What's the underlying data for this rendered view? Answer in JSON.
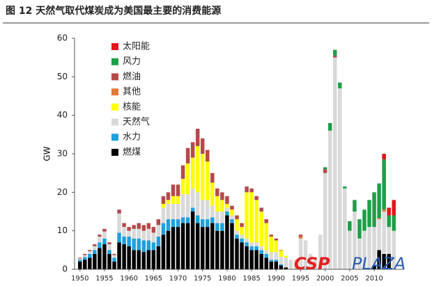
{
  "chart_data": {
    "type": "stacked_bar",
    "title": "图 12 天然气取代煤炭成为美国最主要的消费能源",
    "y_label": "GW",
    "watermark": [
      "CSP",
      "PLAZA"
    ],
    "x": [
      1950,
      1951,
      1952,
      1953,
      1954,
      1955,
      1956,
      1957,
      1958,
      1959,
      1960,
      1961,
      1962,
      1963,
      1964,
      1965,
      1966,
      1967,
      1968,
      1969,
      1970,
      1971,
      1972,
      1973,
      1974,
      1975,
      1976,
      1977,
      1978,
      1979,
      1980,
      1981,
      1982,
      1983,
      1984,
      1985,
      1986,
      1987,
      1988,
      1989,
      1990,
      1991,
      1992,
      1993,
      1994,
      1995,
      1996,
      1997,
      1998,
      1999,
      2000,
      2001,
      2002,
      2003,
      2004,
      2005,
      2006,
      2007,
      2008,
      2009,
      2010,
      2011,
      2012,
      2013,
      2014
    ],
    "xlim": [
      1948.9,
      2016.1
    ],
    "xticks": [
      1950,
      1955,
      1960,
      1965,
      1970,
      1975,
      1980,
      1985,
      1990,
      1995,
      2000,
      2005,
      2010
    ],
    "ylim": [
      0,
      60
    ],
    "yticks": [
      0,
      10,
      20,
      30,
      40,
      50,
      60
    ],
    "legend": "top-left",
    "series": [
      {
        "name": "燃煤",
        "color": "#000000",
        "values": [
          2,
          2.5,
          3,
          4,
          5.5,
          6.5,
          4,
          2,
          7,
          6.5,
          6,
          5,
          5,
          4.5,
          5,
          5,
          6,
          9,
          10,
          11,
          11,
          12,
          12,
          15,
          12,
          11,
          11,
          12,
          10,
          10,
          14,
          12,
          8,
          7,
          6,
          5,
          5,
          4,
          3,
          2,
          2,
          1,
          0.5,
          0,
          0,
          0,
          0,
          0,
          0,
          0,
          0,
          0,
          0,
          0,
          0,
          0,
          0,
          0,
          0,
          0,
          1,
          5,
          4,
          4,
          0
        ]
      },
      {
        "name": "水力",
        "color": "#1fa0dc",
        "values": [
          0.5,
          0.7,
          1,
          1,
          1.5,
          1.5,
          1,
          1,
          2.5,
          2,
          2.5,
          3,
          3,
          3,
          2.5,
          2,
          2.5,
          3,
          3,
          2,
          2,
          1.5,
          1.5,
          1,
          2,
          2,
          2,
          1.5,
          2,
          2,
          1,
          1,
          1,
          1,
          1,
          1,
          1,
          1,
          1,
          0.5,
          0.5,
          0.3,
          0,
          0,
          0,
          0,
          0,
          0,
          0,
          0,
          0,
          0,
          0,
          0,
          0,
          0,
          0,
          0,
          0,
          0,
          0,
          0,
          0,
          0,
          0
        ]
      },
      {
        "name": "天然气",
        "color": "#d9d9d9",
        "values": [
          0.3,
          0.5,
          0.7,
          1,
          1.5,
          1.8,
          1.5,
          0.7,
          5,
          2.5,
          1.5,
          2.5,
          2.5,
          2.5,
          3,
          2.5,
          3,
          4,
          4,
          4,
          4,
          6,
          6,
          5,
          6,
          5,
          5,
          3,
          3,
          3,
          1,
          1,
          1,
          1,
          1,
          1,
          1,
          1,
          1,
          2,
          2,
          2,
          2.5,
          2.5,
          2.5,
          8,
          7.5,
          4,
          3,
          9,
          25,
          36,
          55,
          47,
          21,
          10,
          15,
          8,
          10,
          11,
          10,
          8,
          11,
          7,
          10
        ]
      },
      {
        "name": "核能",
        "color": "#ffff00",
        "values": [
          0,
          0,
          0,
          0,
          0,
          0,
          0,
          0,
          0,
          0,
          0,
          0,
          0,
          0,
          0,
          0,
          0,
          1,
          1,
          2,
          2,
          4,
          8,
          8,
          12,
          12,
          10,
          6,
          4,
          3,
          1,
          1.5,
          3,
          2,
          12,
          13,
          11,
          9,
          7,
          4,
          3,
          1.5,
          0.5,
          0,
          0,
          0,
          0,
          0,
          0,
          0,
          0,
          0,
          0,
          0,
          0,
          0,
          0,
          0,
          0,
          0,
          0,
          0,
          0,
          0,
          0
        ]
      },
      {
        "name": "其他",
        "color": "#e07b3c",
        "values": [
          0,
          0,
          0,
          0,
          0,
          0,
          0,
          0,
          0,
          0,
          0,
          0,
          0,
          0,
          0,
          0,
          0,
          0,
          0,
          0,
          0,
          0,
          0,
          0,
          0,
          0,
          0,
          0,
          0,
          0,
          0,
          0,
          0,
          0,
          0,
          0,
          0,
          0,
          0,
          0,
          0,
          0.2,
          0,
          0,
          0,
          0.5,
          0,
          0,
          0,
          0,
          0,
          0,
          0,
          0,
          0,
          0,
          0,
          0,
          0,
          0,
          0,
          0.3,
          0.5,
          0,
          0
        ]
      },
      {
        "name": "燃油",
        "color": "#b5494a",
        "values": [
          0.2,
          0.3,
          0.3,
          0.5,
          0.5,
          0.7,
          0.5,
          0.3,
          1,
          1,
          1,
          1,
          1.5,
          1.5,
          1.5,
          1.5,
          1.5,
          2,
          2,
          3,
          3,
          3.5,
          4,
          4,
          4.5,
          4,
          3,
          2.5,
          2,
          2,
          2,
          1,
          1,
          1,
          1.5,
          1,
          1,
          1,
          1,
          0.5,
          0.5,
          0,
          0,
          0,
          0,
          0.5,
          0,
          0,
          0,
          0,
          1,
          0,
          0.5,
          0,
          0,
          0,
          0,
          0,
          0,
          0,
          0,
          0,
          0,
          0,
          0
        ]
      },
      {
        "name": "风力",
        "color": "#1e9e48",
        "values": [
          0,
          0,
          0,
          0,
          0,
          0,
          0,
          0,
          0,
          0,
          0,
          0,
          0,
          0,
          0,
          0,
          0,
          0,
          0,
          0,
          0,
          0,
          0,
          0,
          0,
          0,
          0,
          0,
          0,
          0,
          0,
          0,
          0,
          0,
          0,
          0,
          0,
          0,
          0,
          0,
          0,
          0,
          0,
          0,
          0,
          0,
          0,
          0,
          0,
          0,
          0.5,
          2,
          1.5,
          1.5,
          0.5,
          2.5,
          3,
          5,
          5.5,
          7,
          9,
          9,
          13,
          3,
          4
        ]
      },
      {
        "name": "太阳能",
        "color": "#e3141c",
        "values": [
          0,
          0,
          0,
          0,
          0,
          0,
          0,
          0,
          0,
          0,
          0,
          0,
          0,
          0,
          0,
          0,
          0,
          0,
          0,
          0,
          0,
          0,
          0,
          0,
          0,
          0,
          0,
          0,
          0,
          0,
          0,
          0,
          0,
          0,
          0,
          0,
          0,
          0,
          0,
          0,
          0,
          0,
          0,
          0,
          0,
          0,
          0,
          0,
          0,
          0,
          0,
          0,
          0,
          0,
          0,
          0,
          0,
          0,
          0,
          0,
          0,
          0,
          1.5,
          2,
          4
        ]
      }
    ]
  }
}
